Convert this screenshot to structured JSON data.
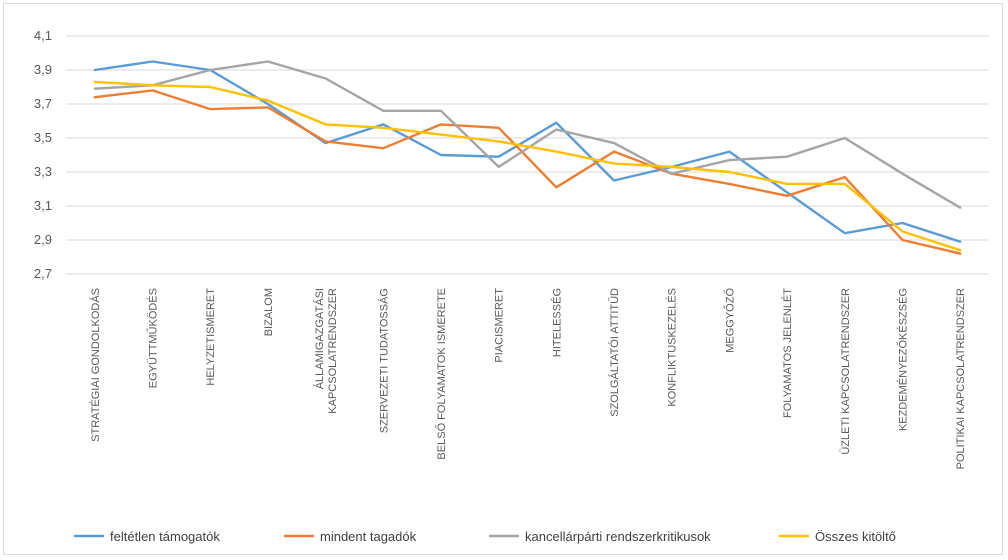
{
  "chart_data": {
    "type": "line",
    "categories": [
      [
        "STRATÉGIAI GONDOLKODÁS"
      ],
      [
        "EGYÜTTMŰKÖDÉS"
      ],
      [
        "HELYZETISMERET"
      ],
      [
        "BIZALOM"
      ],
      [
        "ÁLLAMIGAZGATÁSI",
        "KAPCSOLATRENDSZER"
      ],
      [
        "SZERVEZETI TUDATOSSÁG"
      ],
      [
        "BELSŐ FOLYAMATOK ISMERETE"
      ],
      [
        "PIACISMERET"
      ],
      [
        "HITELESSÉG"
      ],
      [
        "SZOLGÁLTATÓI ATTITŰD"
      ],
      [
        "KONFLIKTUSKEZELÉS"
      ],
      [
        "MEGGYŐZŐ"
      ],
      [
        "FOLYAMATOS JELENLÉT"
      ],
      [
        "ÜZLETI KAPCSOLATRENDSZER"
      ],
      [
        "KEZDEMÉNYEZŐKÉSZSÉG"
      ],
      [
        "POLITIKAI KAPCSOLATRENDSZER"
      ]
    ],
    "yticks": [
      "4,1",
      "3,9",
      "3,7",
      "3,5",
      "3,3",
      "3,1",
      "2,9",
      "2,7"
    ],
    "ylim": [
      2.7,
      4.1
    ],
    "grid": true,
    "legend_position": "bottom",
    "series": [
      {
        "name": "feltétlen támogatók",
        "color": "#5b9bd5",
        "values": [
          3.9,
          3.95,
          3.9,
          3.7,
          3.47,
          3.58,
          3.4,
          3.39,
          3.59,
          3.25,
          3.33,
          3.42,
          3.18,
          2.94,
          3.0,
          2.89
        ]
      },
      {
        "name": "mindent tagadók",
        "color": "#ed7d31",
        "values": [
          3.74,
          3.78,
          3.67,
          3.68,
          3.48,
          3.44,
          3.58,
          3.56,
          3.21,
          3.42,
          3.29,
          3.23,
          3.16,
          3.27,
          2.9,
          2.82
        ]
      },
      {
        "name": "kancellárpárti rendszerkritikusok",
        "color": "#a5a5a5",
        "values": [
          3.79,
          3.81,
          3.9,
          3.95,
          3.85,
          3.66,
          3.66,
          3.33,
          3.55,
          3.47,
          3.29,
          3.37,
          3.39,
          3.5,
          3.29,
          3.09
        ]
      },
      {
        "name": "Összes kitöltő",
        "color": "#ffc000",
        "values": [
          3.83,
          3.81,
          3.8,
          3.72,
          3.58,
          3.56,
          3.52,
          3.48,
          3.42,
          3.35,
          3.33,
          3.3,
          3.23,
          3.23,
          2.95,
          2.84
        ]
      }
    ]
  }
}
